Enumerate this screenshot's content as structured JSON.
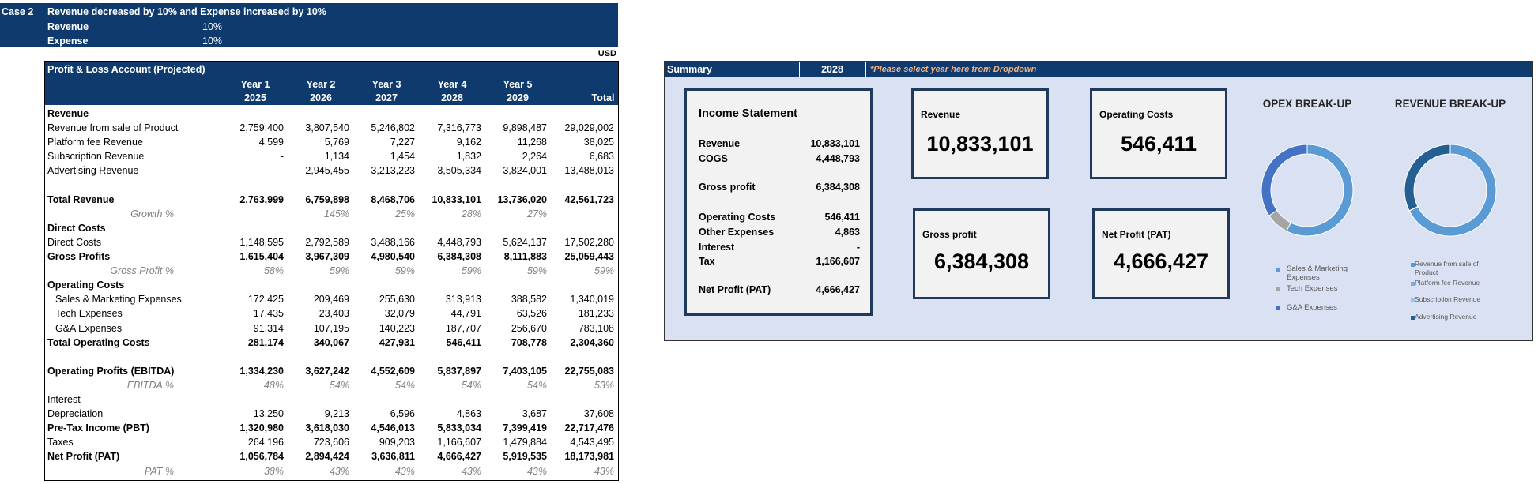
{
  "banner": {
    "case": "Case 2",
    "title": "Revenue decreased by 10% and Expense increased by 10%",
    "rows": [
      {
        "label": "Revenue",
        "value": "10%"
      },
      {
        "label": "Expense",
        "value": "10%"
      }
    ],
    "currency": "USD"
  },
  "pl_table": {
    "title": "Profit & Loss Account (Projected)",
    "columns": [
      {
        "label": "Year 1",
        "year": "2025"
      },
      {
        "label": "Year 2",
        "year": "2026"
      },
      {
        "label": "Year 3",
        "year": "2027"
      },
      {
        "label": "Year 4",
        "year": "2028"
      },
      {
        "label": "Year 5",
        "year": "2029"
      },
      {
        "year": "Total"
      }
    ],
    "rows": [
      {
        "label": "Revenue",
        "style": "section"
      },
      {
        "label": "Revenue from sale of Product",
        "values": [
          "2,759,400",
          "3,807,540",
          "5,246,802",
          "7,316,773",
          "9,898,487",
          "29,029,002"
        ]
      },
      {
        "label": "Platform fee Revenue",
        "values": [
          "4,599",
          "5,769",
          "7,227",
          "9,162",
          "11,268",
          "38,025"
        ]
      },
      {
        "label": "Subscription Revenue",
        "values": [
          "-",
          "1,134",
          "1,454",
          "1,832",
          "2,264",
          "6,683"
        ]
      },
      {
        "label": "Advertising Revenue",
        "values": [
          "-",
          "2,945,455",
          "3,213,223",
          "3,505,334",
          "3,824,001",
          "13,488,013"
        ]
      },
      {
        "style": "blank"
      },
      {
        "label": "Total Revenue",
        "style": "bold",
        "values": [
          "2,763,999",
          "6,759,898",
          "8,468,706",
          "10,833,101",
          "13,736,020",
          "42,561,723"
        ]
      },
      {
        "label": "Growth %",
        "style": "pct",
        "values": [
          null,
          "145%",
          "25%",
          "28%",
          "27%",
          null
        ]
      },
      {
        "label": "Direct Costs",
        "style": "section"
      },
      {
        "label": "Direct Costs",
        "values": [
          "1,148,595",
          "2,792,589",
          "3,488,166",
          "4,448,793",
          "5,624,137",
          "17,502,280"
        ]
      },
      {
        "label": "Gross Profits",
        "style": "bold",
        "values": [
          "1,615,404",
          "3,967,309",
          "4,980,540",
          "6,384,308",
          "8,111,883",
          "25,059,443"
        ]
      },
      {
        "label": "Gross Profit %",
        "style": "pct",
        "values": [
          "58%",
          "59%",
          "59%",
          "59%",
          "59%",
          "59%"
        ]
      },
      {
        "label": "Operating Costs",
        "style": "section"
      },
      {
        "label": "Sales & Marketing Expenses",
        "style": "indent",
        "values": [
          "172,425",
          "209,469",
          "255,630",
          "313,913",
          "388,582",
          "1,340,019"
        ]
      },
      {
        "label": "Tech Expenses",
        "style": "indent",
        "values": [
          "17,435",
          "23,403",
          "32,079",
          "44,791",
          "63,526",
          "181,233"
        ]
      },
      {
        "label": "G&A Expenses",
        "style": "indent",
        "values": [
          "91,314",
          "107,195",
          "140,223",
          "187,707",
          "256,670",
          "783,108"
        ]
      },
      {
        "label": "Total Operating Costs",
        "style": "bold",
        "values": [
          "281,174",
          "340,067",
          "427,931",
          "546,411",
          "708,778",
          "2,304,360"
        ]
      },
      {
        "style": "blank"
      },
      {
        "label": "Operating Profits (EBITDA)",
        "style": "bold",
        "values": [
          "1,334,230",
          "3,627,242",
          "4,552,609",
          "5,837,897",
          "7,403,105",
          "22,755,083"
        ]
      },
      {
        "label": "EBITDA %",
        "style": "pct",
        "values": [
          "48%",
          "54%",
          "54%",
          "54%",
          "54%",
          "53%"
        ]
      },
      {
        "label": "Interest",
        "values": [
          "-",
          "-",
          "-",
          "-",
          "-",
          null
        ]
      },
      {
        "label": "Depreciation",
        "values": [
          "13,250",
          "9,213",
          "6,596",
          "4,863",
          "3,687",
          "37,608"
        ]
      },
      {
        "label": "Pre-Tax Income (PBT)",
        "style": "bold",
        "values": [
          "1,320,980",
          "3,618,030",
          "4,546,013",
          "5,833,034",
          "7,399,419",
          "22,717,476"
        ]
      },
      {
        "label": "Taxes",
        "values": [
          "264,196",
          "723,606",
          "909,203",
          "1,166,607",
          "1,479,884",
          "4,543,495"
        ]
      },
      {
        "label": "Net Profit (PAT)",
        "style": "bold",
        "values": [
          "1,056,784",
          "2,894,424",
          "3,636,811",
          "4,666,427",
          "5,919,535",
          "18,173,981"
        ]
      },
      {
        "label": "PAT %",
        "style": "pct",
        "values": [
          "38%",
          "43%",
          "43%",
          "43%",
          "43%",
          "43%"
        ]
      }
    ]
  },
  "summary": {
    "title": "Summary",
    "year": "2028",
    "note": "*Please select year here from Dropdown",
    "income_statement": {
      "title": "Income Statement",
      "groups": [
        [
          {
            "label": "Revenue",
            "value": "10,833,101"
          },
          {
            "label": "COGS",
            "value": "4,448,793"
          }
        ],
        [
          {
            "label": "Gross profit",
            "value": "6,384,308"
          }
        ],
        [
          {
            "label": "Operating Costs",
            "value": "546,411"
          },
          {
            "label": "Other Expenses",
            "value": "4,863"
          },
          {
            "label": "Interest",
            "value": "-"
          },
          {
            "label": "Tax",
            "value": "1,166,607"
          }
        ],
        [
          {
            "label": "Net Profit (PAT)",
            "value": "4,666,427"
          }
        ]
      ]
    },
    "cards": [
      {
        "label": "Revenue",
        "value": "10,833,101"
      },
      {
        "label": "Operating Costs",
        "value": "546,411"
      },
      {
        "label": "Gross profit",
        "value": "6,384,308"
      },
      {
        "label": "Net Profit (PAT)",
        "value": "4,666,427"
      }
    ]
  },
  "chart_data": [
    {
      "type": "donut",
      "title": "OPEX BREAK-UP",
      "categories": [
        "Sales & Marketing Expenses",
        "Tech Expenses",
        "G&A Expenses"
      ],
      "values": [
        313913,
        44791,
        187707
      ],
      "colors": [
        "#5b9bd5",
        "#a5a5a5",
        "#4472c4"
      ]
    },
    {
      "type": "donut",
      "title": "REVENUE BREAK-UP",
      "categories": [
        "Revenue from sale of Product",
        "Platform fee Revenue",
        "Subscription Revenue",
        "Advertising Revenue"
      ],
      "values": [
        7316773,
        9162,
        1832,
        3505334
      ],
      "colors": [
        "#5b9bd5",
        "#7fa9d6",
        "#9dc3e6",
        "#255e91"
      ]
    }
  ]
}
